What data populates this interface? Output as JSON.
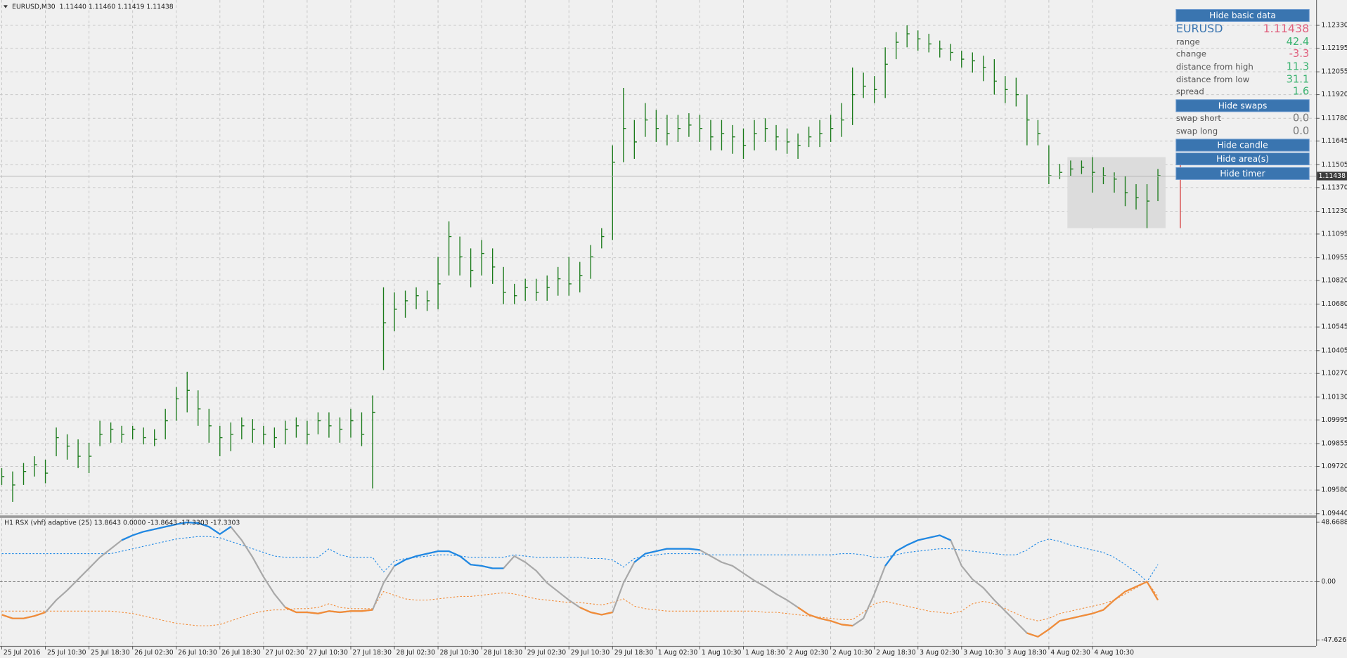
{
  "chart_data": [
    {
      "type": "ohlc",
      "title": "EURUSD,M30  1.11440 1.11460 1.11419 1.11438",
      "color": "#1a7a1a",
      "grid": true,
      "xlim": [
        -0.16,
        120.5
      ],
      "xticks": [
        {
          "value": 0,
          "label": "25 Jul 2016"
        },
        {
          "value": 4,
          "label": "25 Jul 10:30"
        },
        {
          "value": 8,
          "label": "25 Jul 18:30"
        },
        {
          "value": 12,
          "label": "26 Jul 02:30"
        },
        {
          "value": 16,
          "label": "26 Jul 10:30"
        },
        {
          "value": 20,
          "label": "26 Jul 18:30"
        },
        {
          "value": 24,
          "label": "27 Jul 02:30"
        },
        {
          "value": 28,
          "label": "27 Jul 10:30"
        },
        {
          "value": 32,
          "label": "27 Jul 18:30"
        },
        {
          "value": 36,
          "label": "28 Jul 02:30"
        },
        {
          "value": 40,
          "label": "28 Jul 10:30"
        },
        {
          "value": 44,
          "label": "28 Jul 18:30"
        },
        {
          "value": 48,
          "label": "29 Jul 02:30"
        },
        {
          "value": 52,
          "label": "29 Jul 10:30"
        },
        {
          "value": 56,
          "label": "29 Jul 18:30"
        },
        {
          "value": 60,
          "label": "1 Aug 02:30"
        },
        {
          "value": 64,
          "label": "1 Aug 10:30"
        },
        {
          "value": 68,
          "label": "1 Aug 18:30"
        },
        {
          "value": 72,
          "label": "2 Aug 02:30"
        },
        {
          "value": 76,
          "label": "2 Aug 10:30"
        },
        {
          "value": 80,
          "label": "2 Aug 18:30"
        },
        {
          "value": 84,
          "label": "3 Aug 02:30"
        },
        {
          "value": 88,
          "label": "3 Aug 10:30"
        },
        {
          "value": 92,
          "label": "3 Aug 18:30"
        },
        {
          "value": 96,
          "label": "4 Aug 02:30"
        },
        {
          "value": 100,
          "label": "4 Aug 10:30"
        }
      ],
      "ylim": [
        1.0943,
        1.1248
      ],
      "yticks": [
        {
          "value": 1.1233,
          "label": "1.12330"
        },
        1.12195,
        1.12055,
        {
          "value": 1.1192,
          "label": "1.11920"
        },
        {
          "value": 1.1178,
          "label": "1.11780"
        },
        1.11645,
        1.11505,
        {
          "value": 1.1137,
          "label": "1.11370"
        },
        {
          "value": 1.1123,
          "label": "1.11230"
        },
        1.11095,
        1.10955,
        {
          "value": 1.1082,
          "label": "1.10820"
        },
        {
          "value": 1.1068,
          "label": "1.10680"
        },
        1.10545,
        1.10405,
        {
          "value": 1.1027,
          "label": "1.10270"
        },
        {
          "value": 1.1013,
          "label": "1.10130"
        },
        1.09995,
        1.09855,
        {
          "value": 1.0972,
          "label": "1.09720"
        },
        {
          "value": 1.0958,
          "label": "1.09580"
        },
        {
          "value": 1.0944,
          "label": "1.09440"
        }
      ],
      "high": [
        1.0971,
        1.0969,
        1.0974,
        1.0978,
        1.0976,
        1.0995,
        1.0991,
        1.0988,
        1.0986,
        1.0999,
        1.0998,
        1.0996,
        1.0996,
        1.0995,
        1.0994,
        1.1006,
        1.1019,
        1.1028,
        1.1017,
        1.1006,
        1.0996,
        1.0998,
        1.1001,
        1.1,
        1.0996,
        1.0995,
        1.0999,
        1.1001,
        1.0999,
        1.1004,
        1.1004,
        1.1001,
        1.1006,
        1.1004,
        1.1014,
        1.1078,
        1.1075,
        1.1076,
        1.1078,
        1.1076,
        1.1096,
        1.1117,
        1.1108,
        1.1101,
        1.1106,
        1.1101,
        1.109,
        1.108,
        1.1083,
        1.1083,
        1.1085,
        1.109,
        1.1096,
        1.1093,
        1.1103,
        1.1113,
        1.1162,
        1.1196,
        1.1177,
        1.1187,
        1.1183,
        1.118,
        1.118,
        1.1181,
        1.118,
        1.1177,
        1.1177,
        1.1174,
        1.1172,
        1.1177,
        1.1178,
        1.1174,
        1.1172,
        1.1169,
        1.1173,
        1.1177,
        1.118,
        1.1187,
        1.1208,
        1.1205,
        1.1203,
        1.122,
        1.1229,
        1.1233,
        1.123,
        1.1228,
        1.1224,
        1.1222,
        1.1218,
        1.1217,
        1.1215,
        1.1213,
        1.1203,
        1.1202,
        1.1192,
        1.1177,
        1.1162,
        1.1151,
        1.1153,
        1.1153,
        1.1155,
        1.1149,
        1.1146,
        1.1144,
        1.1139,
        1.1139,
        1.1148
      ],
      "low": [
        1.0961,
        1.0951,
        1.0961,
        1.0966,
        1.0962,
        1.0978,
        1.0976,
        1.0971,
        1.0968,
        1.0984,
        1.0986,
        1.0986,
        1.0988,
        1.0985,
        1.0984,
        1.0988,
        1.0999,
        1.1004,
        1.0996,
        1.0986,
        1.0978,
        1.0981,
        1.0988,
        1.0986,
        1.0985,
        1.0983,
        1.0985,
        1.0989,
        1.0985,
        1.0991,
        1.0989,
        1.0986,
        1.0989,
        1.0984,
        1.0959,
        1.1029,
        1.1052,
        1.106,
        1.1065,
        1.1064,
        1.1065,
        1.1085,
        1.1085,
        1.1078,
        1.1085,
        1.108,
        1.1068,
        1.1068,
        1.107,
        1.107,
        1.107,
        1.1073,
        1.1073,
        1.1075,
        1.1083,
        1.1101,
        1.1106,
        1.1152,
        1.1154,
        1.1167,
        1.1164,
        1.1162,
        1.1164,
        1.1167,
        1.1164,
        1.1159,
        1.1159,
        1.1157,
        1.1154,
        1.1159,
        1.1164,
        1.1159,
        1.1157,
        1.1154,
        1.1161,
        1.1161,
        1.1164,
        1.1167,
        1.1174,
        1.119,
        1.1187,
        1.119,
        1.1213,
        1.122,
        1.1218,
        1.1217,
        1.1214,
        1.1212,
        1.1208,
        1.1205,
        1.12,
        1.1192,
        1.1187,
        1.1185,
        1.1162,
        1.1162,
        1.1139,
        1.1142,
        1.1144,
        1.1145,
        1.1134,
        1.1139,
        1.1134,
        1.1126,
        1.1124,
        1.1113,
        1.1129
      ],
      "close": [
        1.0966,
        1.0961,
        1.0969,
        1.0973,
        1.0968,
        1.0989,
        1.0984,
        1.0978,
        1.0978,
        1.0991,
        1.0994,
        1.0991,
        1.0994,
        1.0989,
        1.0988,
        1.0999,
        1.1012,
        1.1017,
        1.1006,
        1.0996,
        1.0989,
        1.0991,
        1.0996,
        1.0994,
        1.0991,
        1.0989,
        1.0994,
        1.0996,
        1.0991,
        1.0999,
        1.0996,
        1.0994,
        1.0999,
        1.0991,
        1.1004,
        1.1057,
        1.1065,
        1.107,
        1.1073,
        1.107,
        1.108,
        1.1108,
        1.1096,
        1.1088,
        1.1098,
        1.109,
        1.1075,
        1.1073,
        1.1078,
        1.1075,
        1.1078,
        1.1083,
        1.108,
        1.1085,
        1.1096,
        1.1108,
        1.1152,
        1.1172,
        1.1164,
        1.1177,
        1.1172,
        1.1169,
        1.1172,
        1.1174,
        1.1172,
        1.1167,
        1.1169,
        1.1167,
        1.1162,
        1.1169,
        1.1172,
        1.1167,
        1.1164,
        1.1162,
        1.1167,
        1.1169,
        1.1172,
        1.1177,
        1.1192,
        1.1197,
        1.1195,
        1.121,
        1.1223,
        1.1228,
        1.1225,
        1.1222,
        1.1219,
        1.1217,
        1.1213,
        1.1212,
        1.1208,
        1.12,
        1.1195,
        1.1192,
        1.1177,
        1.1169,
        1.1144,
        1.1146,
        1.1148,
        1.1149,
        1.1146,
        1.1144,
        1.1142,
        1.1134,
        1.1131,
        1.1129,
        1.1144
      ],
      "current_price": 1.11438,
      "area": {
        "x": [
          97.7,
          106.7
        ],
        "y": [
          1.1113,
          1.1155
        ],
        "color": "#dcdcdc"
      },
      "candle": {
        "high": 1.1152,
        "low": 1.1113,
        "color": "#d32f2f"
      }
    },
    {
      "type": "line",
      "title": "H1 RSX (vhf) adaptive (25) 13.8643 0.0000 -13.8643 -17.3303 -17.3303",
      "ylim": [
        -47.6267,
        48.6688
      ],
      "yticks": [
        48.6688,
        {
          "value": 0,
          "label": "0.00"
        },
        -47.6267
      ],
      "zero_line": true,
      "series": [
        {
          "color": "#1e88e5",
          "style": "dotted",
          "values": [
            23,
            23,
            23,
            23,
            23,
            23,
            23,
            23,
            23,
            23,
            23,
            25,
            27,
            29,
            31,
            33,
            35,
            36,
            37,
            37,
            36,
            33,
            30,
            27,
            24,
            21,
            20,
            20,
            20,
            20,
            27,
            22,
            20,
            20,
            20,
            8,
            17,
            19,
            20,
            21,
            22,
            22,
            21,
            20,
            20,
            20,
            20,
            22,
            21,
            20,
            20,
            20,
            20,
            20,
            19,
            19,
            18,
            12,
            19,
            21,
            22,
            23,
            23,
            23,
            23,
            22,
            22,
            22,
            22,
            22,
            22,
            22,
            22,
            22,
            22,
            22,
            22,
            23,
            23,
            22,
            20,
            20,
            22,
            24,
            25,
            26,
            27,
            27,
            26,
            25,
            24,
            23,
            22,
            22,
            26,
            32,
            35,
            33,
            30,
            28,
            26,
            24,
            20,
            14,
            8,
            0,
            14
          ]
        },
        {
          "color": "#f28c38",
          "style": "dotted",
          "values": [
            -24,
            -24,
            -24,
            -24,
            -24,
            -24,
            -24,
            -24,
            -24,
            -24,
            -24,
            -25,
            -26,
            -28,
            -30,
            -32,
            -34,
            -35,
            -36,
            -36,
            -35,
            -32,
            -29,
            -26,
            -24,
            -23,
            -23,
            -22,
            -22,
            -21,
            -18,
            -21,
            -22,
            -22,
            -22,
            -8,
            -11,
            -14,
            -15,
            -15,
            -14,
            -13,
            -12,
            -12,
            -11,
            -10,
            -9,
            -10,
            -12,
            -14,
            -15,
            -16,
            -17,
            -17,
            -18,
            -19,
            -17,
            -14,
            -20,
            -22,
            -23,
            -24,
            -24,
            -24,
            -24,
            -24,
            -24,
            -24,
            -24,
            -24,
            -25,
            -25,
            -26,
            -27,
            -28,
            -29,
            -30,
            -31,
            -31,
            -25,
            -18,
            -16,
            -18,
            -20,
            -22,
            -24,
            -25,
            -26,
            -24,
            -18,
            -16,
            -18,
            -22,
            -26,
            -30,
            -32,
            -30,
            -26,
            -24,
            -22,
            -20,
            -18,
            -15,
            -10,
            -5,
            0,
            -12
          ]
        },
        {
          "color": "#a8a8a8",
          "style": "solid",
          "values": [
            -27,
            -30,
            -30,
            -28,
            -25,
            -15,
            -7,
            2,
            11,
            20,
            27,
            34,
            38,
            41,
            43,
            45,
            47,
            48.6,
            48,
            45,
            39,
            45,
            34,
            20,
            4,
            -10,
            -21,
            -25,
            -25,
            -26,
            -24,
            -25,
            -24,
            -24,
            -23,
            -1,
            13,
            18,
            21,
            23,
            25,
            25,
            21,
            14,
            13,
            11,
            11,
            21,
            16,
            9,
            -1,
            -8,
            -15,
            -21,
            -25,
            -27,
            -25,
            -1,
            16,
            23,
            25,
            27,
            27,
            27,
            26,
            21,
            16,
            13,
            7,
            1,
            -4,
            -10,
            -15,
            -21,
            -27,
            -30,
            -32,
            -35,
            -36,
            -30,
            -10,
            13,
            25,
            30,
            34,
            36,
            38,
            34,
            13,
            2,
            -5,
            -15,
            -24,
            -33,
            -42,
            -45,
            -39,
            -32,
            -30,
            -28,
            -26,
            -23,
            -15,
            -8,
            -4,
            0,
            -15
          ]
        },
        {
          "color": "#1e88e5",
          "style": "solid",
          "values": [
            null,
            null,
            null,
            null,
            null,
            null,
            null,
            null,
            null,
            null,
            null,
            34,
            38,
            41,
            43,
            45,
            47,
            48.6,
            48,
            45,
            39,
            45,
            null,
            null,
            null,
            null,
            null,
            null,
            null,
            null,
            null,
            null,
            null,
            null,
            null,
            null,
            13,
            18,
            21,
            23,
            25,
            25,
            21,
            14,
            13,
            11,
            11,
            null,
            null,
            null,
            null,
            null,
            null,
            null,
            null,
            null,
            null,
            null,
            16,
            23,
            25,
            27,
            27,
            27,
            26,
            null,
            null,
            null,
            null,
            null,
            null,
            null,
            null,
            null,
            null,
            null,
            null,
            null,
            null,
            null,
            null,
            13,
            25,
            30,
            34,
            36,
            38,
            34,
            null,
            null,
            null,
            null,
            null,
            null,
            null,
            null,
            null,
            null,
            null,
            null,
            null,
            null,
            null,
            null,
            null,
            null,
            null
          ]
        },
        {
          "color": "#f28c38",
          "style": "solid",
          "values": [
            -27,
            -30,
            -30,
            -28,
            -25,
            null,
            null,
            null,
            null,
            null,
            null,
            null,
            null,
            null,
            null,
            null,
            null,
            null,
            null,
            null,
            null,
            null,
            null,
            null,
            null,
            null,
            -21,
            -25,
            -25,
            -26,
            -24,
            -25,
            -24,
            -24,
            -23,
            null,
            null,
            null,
            null,
            null,
            null,
            null,
            null,
            null,
            null,
            null,
            null,
            null,
            null,
            null,
            null,
            null,
            null,
            -21,
            -25,
            -27,
            -25,
            null,
            null,
            null,
            null,
            null,
            null,
            null,
            null,
            null,
            null,
            null,
            null,
            null,
            null,
            null,
            null,
            -21,
            -27,
            -30,
            -32,
            -35,
            -36,
            null,
            null,
            null,
            null,
            null,
            null,
            null,
            null,
            null,
            null,
            null,
            null,
            null,
            null,
            null,
            -42,
            -45,
            -39,
            -32,
            -30,
            -28,
            -26,
            -23,
            -15,
            -8,
            -4,
            0,
            -15
          ]
        }
      ]
    }
  ],
  "panel": {
    "buttons": [
      "Hide basic data",
      "Hide swaps",
      "Hide candle",
      "Hide area(s)",
      "Hide timer"
    ],
    "symbol": "EURUSD",
    "price": "1.11438",
    "rows": [
      {
        "label": "range",
        "value": "42.4"
      },
      {
        "label": "change",
        "value": "-3.3"
      },
      {
        "label": "distance from high",
        "value": "11.3"
      },
      {
        "label": "distance from low",
        "value": "31.1"
      },
      {
        "label": "spread",
        "value": "1.6"
      }
    ],
    "swaps": [
      {
        "label": "swap short",
        "value": "0.0"
      },
      {
        "label": "swap long",
        "value": "0.0"
      }
    ]
  }
}
